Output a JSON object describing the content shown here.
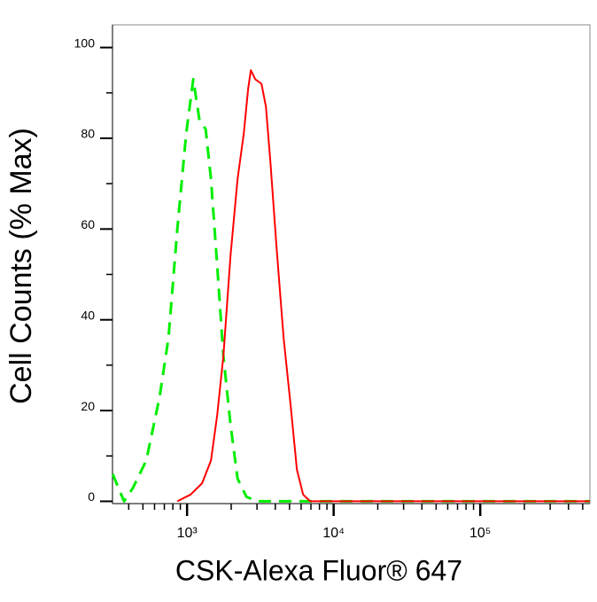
{
  "chart_data": {
    "type": "line",
    "xlabel": "CSK-Alexa Fluor® 647",
    "ylabel": "Cell Counts (% Max)",
    "xscale": "log",
    "xlim": [
      310,
      560000
    ],
    "ylim": [
      -0.5,
      105
    ],
    "xticks": [
      {
        "value": 1000,
        "label": "10³"
      },
      {
        "value": 10000,
        "label": "10⁴"
      },
      {
        "value": 100000,
        "label": "10⁵"
      }
    ],
    "xminorticks": [
      400,
      500,
      600,
      700,
      800,
      900,
      2000,
      3000,
      4000,
      5000,
      6000,
      7000,
      8000,
      9000,
      20000,
      30000,
      40000,
      50000,
      60000,
      70000,
      80000,
      90000,
      200000,
      300000,
      400000,
      500000
    ],
    "yticks": [
      0,
      20,
      40,
      60,
      80,
      100
    ],
    "yminorticks": [
      10,
      30,
      50,
      70,
      90
    ],
    "series": [
      {
        "color": "#00ee00",
        "dashed": true,
        "x": [
          311,
          372,
          428,
          527,
          650,
          747,
          858,
          986,
          1102,
          1215,
          1339,
          1456,
          1605,
          1769,
          1977,
          2210,
          2540,
          3000,
          560000
        ],
        "values": [
          6,
          0,
          3,
          9,
          23,
          36,
          60,
          81,
          93,
          84,
          82,
          71,
          52,
          32,
          17,
          5,
          1,
          0,
          0
        ]
      },
      {
        "color": "#ff0000",
        "dashed": false,
        "x": [
          858,
          1057,
          1267,
          1456,
          1605,
          1769,
          1977,
          2210,
          2436,
          2612,
          2723,
          2919,
          3218,
          3449,
          3698,
          4076,
          4556,
          5093,
          5614,
          6187,
          6916,
          560000
        ],
        "values": [
          0,
          1.5,
          4,
          9,
          19,
          32,
          54,
          71,
          81,
          91,
          95,
          93,
          92,
          87,
          75,
          56,
          36,
          21,
          7,
          1.5,
          0,
          0
        ]
      }
    ]
  }
}
